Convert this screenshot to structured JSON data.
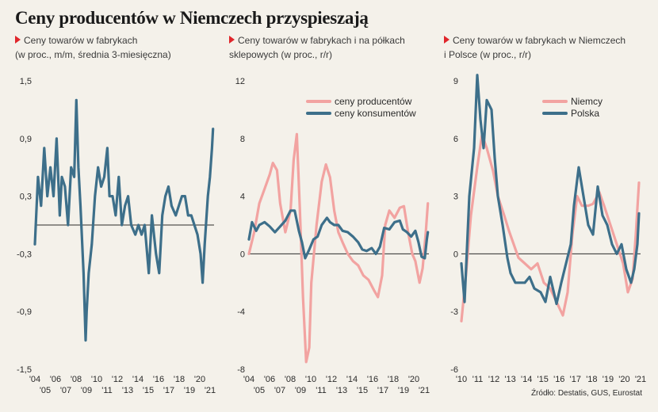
{
  "title": "Ceny producentów w Niemczech przyspieszają",
  "source": "Źródło: Destatis, GUS, Eurostat",
  "colors": {
    "producer": "#f2a3a1",
    "consumer": "#3d6f8a",
    "marker": "#e0262b",
    "axis": "#2b2b2b"
  },
  "panels": [
    {
      "subtitle_line1": "Ceny towarów w fabrykach",
      "subtitle_line2": "(w proc., m/m, średnia 3-miesięczna)"
    },
    {
      "subtitle_line1": "Ceny towarów w fabrykach i na półkach",
      "subtitle_line2": "sklepowych (w proc., r/r)"
    },
    {
      "subtitle_line1": "Ceny towarów w fabrykach w Niemczech",
      "subtitle_line2": "i Polsce (w proc., r/r)"
    }
  ],
  "chart_data": [
    {
      "type": "line",
      "title": "Ceny towarów w fabrykach (w proc., m/m, średnia 3-miesięczna)",
      "ylim": [
        -1.5,
        1.5
      ],
      "yticks": [
        "1,5",
        "0,9",
        "0,3",
        "-0,3",
        "-0,9",
        "-1,5"
      ],
      "xlim": [
        2004,
        2021.3
      ],
      "xticks_top": [
        "'04",
        "'06",
        "'08",
        "'10",
        "'12",
        "'14",
        "'16",
        "'18",
        "'20"
      ],
      "xticks_bottom": [
        "'05",
        "'07",
        "'09",
        "'11",
        "'13",
        "'15",
        "'17",
        "'19",
        "'21"
      ],
      "reference_line": 0,
      "series": [
        {
          "name": "",
          "x": [
            2004.0,
            2004.3,
            2004.6,
            2004.9,
            2005.2,
            2005.5,
            2005.8,
            2006.1,
            2006.4,
            2006.6,
            2006.9,
            2007.2,
            2007.5,
            2007.8,
            2008.0,
            2008.2,
            2008.4,
            2008.7,
            2008.9,
            2009.0,
            2009.2,
            2009.5,
            2009.8,
            2010.1,
            2010.4,
            2010.7,
            2011.0,
            2011.2,
            2011.5,
            2011.8,
            2012.1,
            2012.4,
            2012.7,
            2013.0,
            2013.3,
            2013.7,
            2014.0,
            2014.3,
            2014.6,
            2015.0,
            2015.3,
            2015.7,
            2016.0,
            2016.3,
            2016.6,
            2016.9,
            2017.2,
            2017.6,
            2017.9,
            2018.2,
            2018.5,
            2018.8,
            2019.1,
            2019.4,
            2019.7,
            2020.0,
            2020.2,
            2020.4,
            2020.7,
            2020.9,
            2021.1,
            2021.2
          ],
          "values": [
            -0.2,
            0.5,
            0.2,
            0.8,
            0.3,
            0.6,
            0.3,
            0.9,
            0.1,
            0.5,
            0.4,
            0.0,
            0.6,
            0.5,
            1.3,
            0.6,
            0.2,
            -0.5,
            -1.2,
            -0.9,
            -0.5,
            -0.2,
            0.3,
            0.6,
            0.4,
            0.5,
            0.8,
            0.3,
            0.3,
            0.1,
            0.5,
            0.0,
            0.2,
            0.3,
            0.0,
            -0.1,
            0.0,
            -0.1,
            0.0,
            -0.5,
            0.1,
            -0.3,
            -0.5,
            0.1,
            0.3,
            0.4,
            0.2,
            0.1,
            0.2,
            0.3,
            0.3,
            0.1,
            0.1,
            0.0,
            -0.1,
            -0.3,
            -0.6,
            -0.2,
            0.3,
            0.5,
            0.8,
            1.0
          ]
        }
      ]
    },
    {
      "type": "line",
      "title": "Ceny towarów w fabrykach i na półkach sklepowych (w proc., r/r)",
      "ylim": [
        -8,
        12
      ],
      "yticks": [
        "12",
        "8",
        "4",
        "0",
        "-4",
        "-8"
      ],
      "xlim": [
        2004,
        2021.3
      ],
      "xticks_top": [
        "'04",
        "'06",
        "'08",
        "'10",
        "'12",
        "'14",
        "'16",
        "'18",
        "'20"
      ],
      "xticks_bottom": [
        "'05",
        "'07",
        "'09",
        "'11",
        "'13",
        "'15",
        "'17",
        "'19",
        "'21"
      ],
      "reference_line": 0,
      "legend": [
        "ceny producentów",
        "ceny konsumentów"
      ],
      "series": [
        {
          "name": "ceny producentów",
          "x": [
            2004.0,
            2004.5,
            2005.0,
            2005.5,
            2006.0,
            2006.3,
            2006.7,
            2007.0,
            2007.5,
            2008.0,
            2008.3,
            2008.6,
            2008.9,
            2009.2,
            2009.5,
            2009.8,
            2010.0,
            2010.5,
            2011.0,
            2011.4,
            2011.8,
            2012.2,
            2012.6,
            2013.0,
            2013.5,
            2014.0,
            2014.5,
            2015.0,
            2015.5,
            2016.0,
            2016.4,
            2016.8,
            2017.1,
            2017.5,
            2018.0,
            2018.5,
            2018.9,
            2019.3,
            2019.7,
            2020.0,
            2020.4,
            2020.7,
            2021.0,
            2021.2
          ],
          "values": [
            0.0,
            1.5,
            3.5,
            4.5,
            5.5,
            6.3,
            5.8,
            3.5,
            1.5,
            3.0,
            6.5,
            8.3,
            3.0,
            -3.0,
            -7.5,
            -6.5,
            -2.0,
            2.0,
            5.0,
            6.2,
            5.3,
            3.0,
            1.5,
            0.8,
            0.0,
            -0.5,
            -0.8,
            -1.5,
            -1.8,
            -2.5,
            -3.0,
            -1.5,
            2.0,
            3.0,
            2.5,
            3.2,
            3.3,
            1.5,
            0.0,
            -0.5,
            -2.0,
            -1.0,
            1.5,
            3.5
          ]
        },
        {
          "name": "ceny konsumentów",
          "x": [
            2004.0,
            2004.3,
            2004.7,
            2005.0,
            2005.5,
            2006.0,
            2006.5,
            2007.0,
            2007.5,
            2008.0,
            2008.4,
            2008.8,
            2009.1,
            2009.4,
            2009.8,
            2010.2,
            2010.6,
            2011.0,
            2011.5,
            2011.8,
            2012.2,
            2012.6,
            2013.0,
            2013.5,
            2014.0,
            2014.5,
            2014.9,
            2015.3,
            2015.8,
            2016.2,
            2016.6,
            2017.0,
            2017.5,
            2018.0,
            2018.5,
            2018.8,
            2019.2,
            2019.6,
            2020.0,
            2020.3,
            2020.6,
            2020.9,
            2021.1,
            2021.2
          ],
          "values": [
            1.0,
            2.2,
            1.6,
            2.0,
            2.2,
            1.9,
            1.5,
            1.9,
            2.3,
            3.0,
            3.0,
            1.6,
            0.8,
            -0.3,
            0.3,
            1.0,
            1.2,
            2.0,
            2.5,
            2.2,
            2.0,
            2.0,
            1.6,
            1.5,
            1.2,
            0.8,
            0.3,
            0.2,
            0.4,
            0.0,
            0.5,
            1.8,
            1.7,
            2.2,
            2.3,
            1.7,
            1.5,
            1.2,
            1.6,
            0.8,
            -0.2,
            -0.3,
            1.0,
            1.5
          ]
        }
      ]
    },
    {
      "type": "line",
      "title": "Ceny towarów w fabrykach w Niemczech i Polsce (w proc., r/r)",
      "ylim": [
        -6,
        9
      ],
      "yticks": [
        "9",
        "6",
        "3",
        "0",
        "-3",
        "-6"
      ],
      "xlim": [
        2010,
        2021.3
      ],
      "xticks_top": [
        "'10",
        "'11",
        "'12",
        "'13",
        "'14",
        "'15",
        "'16",
        "'17",
        "'18",
        "'19",
        "'20",
        "'21"
      ],
      "xticks_bottom": [],
      "reference_line": 0,
      "legend": [
        "Niemcy",
        "Polska"
      ],
      "series": [
        {
          "name": "Niemcy",
          "x": [
            2010.0,
            2010.3,
            2010.6,
            2011.0,
            2011.3,
            2011.6,
            2012.0,
            2012.3,
            2012.7,
            2013.0,
            2013.3,
            2013.6,
            2014.0,
            2014.4,
            2014.8,
            2015.2,
            2015.6,
            2016.0,
            2016.4,
            2016.7,
            2017.0,
            2017.3,
            2017.6,
            2018.0,
            2018.3,
            2018.7,
            2019.0,
            2019.4,
            2019.8,
            2020.2,
            2020.5,
            2020.8,
            2021.0,
            2021.2
          ],
          "values": [
            -3.5,
            -1.0,
            2.0,
            4.5,
            6.2,
            5.5,
            4.3,
            3.0,
            2.0,
            1.2,
            0.5,
            -0.2,
            -0.5,
            -0.8,
            -0.5,
            -1.5,
            -1.8,
            -2.5,
            -3.2,
            -2.0,
            1.0,
            3.0,
            2.5,
            2.5,
            2.6,
            3.2,
            2.5,
            1.5,
            0.5,
            -0.5,
            -2.0,
            -1.3,
            1.0,
            3.7
          ]
        },
        {
          "name": "Polska",
          "x": [
            2010.0,
            2010.2,
            2010.5,
            2010.8,
            2011.0,
            2011.2,
            2011.4,
            2011.6,
            2011.9,
            2012.1,
            2012.3,
            2012.6,
            2012.9,
            2013.1,
            2013.4,
            2013.7,
            2014.0,
            2014.3,
            2014.6,
            2015.0,
            2015.3,
            2015.6,
            2016.0,
            2016.3,
            2016.6,
            2016.9,
            2017.1,
            2017.4,
            2017.7,
            2018.0,
            2018.3,
            2018.6,
            2018.9,
            2019.2,
            2019.5,
            2019.8,
            2020.1,
            2020.4,
            2020.7,
            2020.9,
            2021.1,
            2021.2
          ],
          "values": [
            -0.5,
            -2.5,
            3.0,
            5.5,
            9.3,
            7.0,
            5.5,
            8.0,
            7.5,
            5.0,
            3.0,
            1.5,
            -0.2,
            -1.0,
            -1.5,
            -1.5,
            -1.5,
            -1.2,
            -1.8,
            -2.0,
            -2.5,
            -1.2,
            -2.6,
            -1.5,
            -0.5,
            0.5,
            2.5,
            4.5,
            3.0,
            1.5,
            1.0,
            3.5,
            2.0,
            1.5,
            0.5,
            0.0,
            0.5,
            -0.8,
            -1.5,
            -0.8,
            0.5,
            2.1
          ]
        }
      ]
    }
  ]
}
